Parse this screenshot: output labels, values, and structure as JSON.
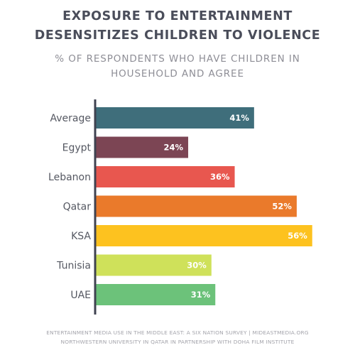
{
  "chart_data": {
    "type": "bar",
    "orientation": "horizontal",
    "title": "EXPOSURE TO ENTERTAINMENT\nDESENSITIZES CHILDREN TO VIOLENCE",
    "subtitle": "% OF RESPONDENTS WHO HAVE CHILDREN IN\nHOUSEHOLD AND AGREE",
    "categories": [
      "Average",
      "Egypt",
      "Lebanon",
      "Qatar",
      "KSA",
      "Tunisia",
      "UAE"
    ],
    "values": [
      41,
      24,
      36,
      52,
      56,
      30,
      31
    ],
    "value_labels": [
      "41%",
      "24%",
      "36%",
      "52%",
      "56%",
      "30%",
      "31%"
    ],
    "colors": [
      "#3f6e7b",
      "#7c4554",
      "#e8574f",
      "#ea7a2b",
      "#fdc21f",
      "#cfe15a",
      "#6cc27a"
    ],
    "xlim": [
      0,
      60
    ],
    "grid": false,
    "legend": "none"
  },
  "footer": {
    "line1": "ENTERTAINMENT MEDIA USE IN THE MIDDLE EAST: A SIX NATION SURVEY | MIDEASTMEDIA.ORG",
    "line2": "NORTHWESTERN UNIVERSITY IN QATAR IN PARTNERSHIP WITH DOHA FILM INSTITUTE"
  }
}
